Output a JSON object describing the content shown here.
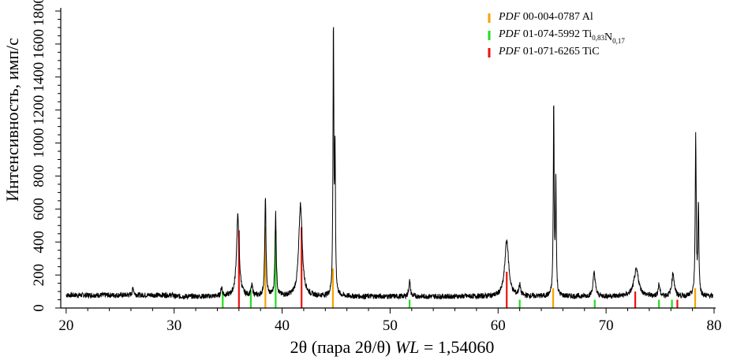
{
  "chart_data": {
    "type": "line",
    "xlabel": {
      "prefix": "2θ (пара 2θ/θ) ",
      "italic": "WL",
      "suffix": " = 1,54060"
    },
    "ylabel": "Интенсивность, имп/с",
    "xlim": [
      19.5,
      80
    ],
    "ylim": [
      0,
      1800
    ],
    "x_ticks": [
      20,
      30,
      40,
      50,
      60,
      70,
      80
    ],
    "y_ticks": [
      0,
      200,
      400,
      600,
      800,
      1000,
      1200,
      1400,
      1600,
      1800
    ],
    "grid": false,
    "legend_position": "top-right",
    "legend": [
      {
        "italic": "PDF",
        "code": " 00-004-0787 ",
        "phase": [
          [
            "Al",
            ""
          ]
        ],
        "color": "#f5a300"
      },
      {
        "italic": "PDF",
        "code": " 01-074-5992 ",
        "phase": [
          [
            "Ti",
            "0,83"
          ],
          [
            "N",
            "0,17"
          ]
        ],
        "color": "#22dd22"
      },
      {
        "italic": "PDF",
        "code": " 01-071-6265 ",
        "phase": [
          [
            "TiC",
            ""
          ]
        ],
        "color": "#ee1111"
      }
    ],
    "series": [
      {
        "type": "line",
        "color": "#000000",
        "baseline": 70,
        "peaks": [
          [
            26.2,
            45,
            0.12
          ],
          [
            34.4,
            55,
            0.12
          ],
          [
            35.9,
            490,
            0.22
          ],
          [
            37.2,
            60,
            0.14
          ],
          [
            38.45,
            590,
            0.1
          ],
          [
            39.4,
            500,
            0.1
          ],
          [
            41.7,
            560,
            0.28
          ],
          [
            44.75,
            1620,
            0.07
          ],
          [
            44.9,
            830,
            0.07
          ],
          [
            51.8,
            95,
            0.12
          ],
          [
            60.8,
            340,
            0.32
          ],
          [
            62.0,
            65,
            0.14
          ],
          [
            65.15,
            1160,
            0.07
          ],
          [
            65.35,
            700,
            0.07
          ],
          [
            68.9,
            145,
            0.18
          ],
          [
            72.8,
            160,
            0.4
          ],
          [
            74.9,
            70,
            0.14
          ],
          [
            76.2,
            140,
            0.2
          ],
          [
            78.3,
            960,
            0.08
          ],
          [
            78.55,
            540,
            0.08
          ]
        ]
      }
    ],
    "reference_lines": {
      "Al": {
        "color": "#f5a300",
        "peaks": [
          [
            38.45,
            490
          ],
          [
            44.7,
            240
          ],
          [
            65.1,
            120
          ],
          [
            78.25,
            120
          ]
        ]
      },
      "TiN": {
        "color": "#22dd22",
        "peaks": [
          [
            34.5,
            100
          ],
          [
            37.1,
            110
          ],
          [
            39.4,
            470
          ],
          [
            51.8,
            50
          ],
          [
            62.0,
            50
          ],
          [
            68.95,
            50
          ],
          [
            74.9,
            50
          ],
          [
            76.1,
            50
          ]
        ]
      },
      "TiC": {
        "color": "#ee1111",
        "peaks": [
          [
            36.0,
            470
          ],
          [
            41.8,
            490
          ],
          [
            60.8,
            220
          ],
          [
            72.7,
            100
          ],
          [
            76.6,
            50
          ]
        ]
      }
    }
  }
}
